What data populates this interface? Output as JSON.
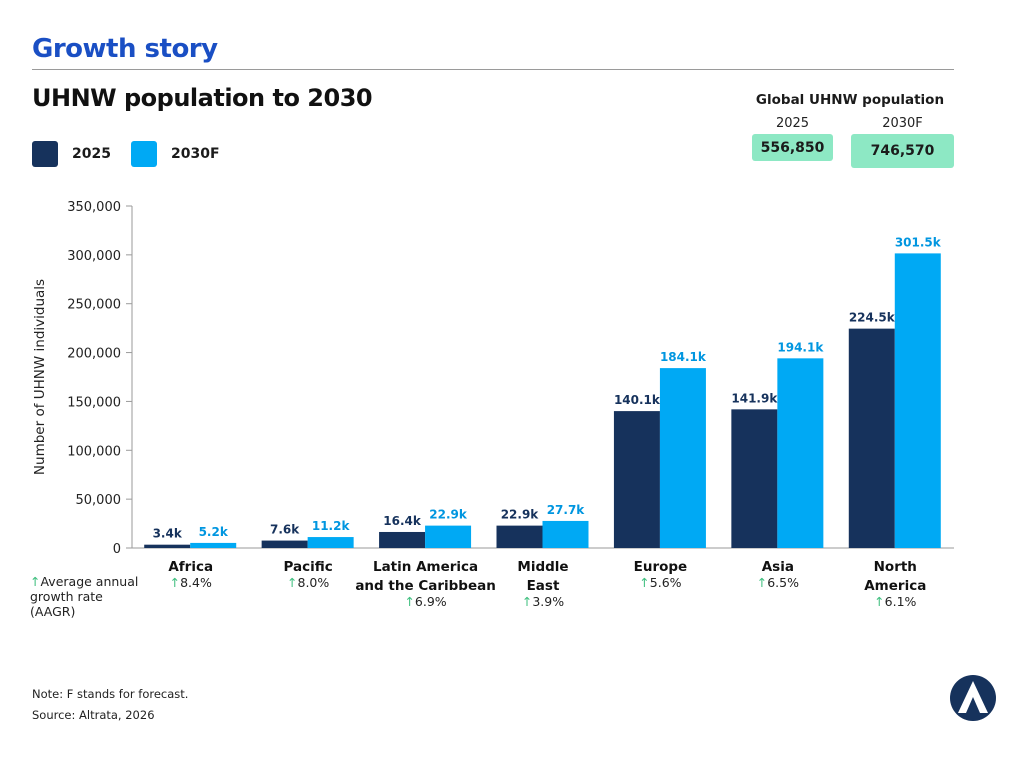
{
  "section_title": "Growth story",
  "chart_title": "UHNW population to 2030",
  "legend": [
    {
      "label": "2025",
      "color": "#16325c"
    },
    {
      "label": "2030F",
      "color": "#00a9f4"
    }
  ],
  "global": {
    "title": "Global UHNW population",
    "year_2025": "2025",
    "value_2025": "556,850",
    "year_2030": "2030F",
    "value_2030": "746,570"
  },
  "aagr_note": {
    "arrow": "↑",
    "line1": "Average annual",
    "line2": "growth rate",
    "line3": "(AAGR)"
  },
  "footer": {
    "note": "Note: F stands for forecast.",
    "source": "Source: Altrata, 2026"
  },
  "chart_data": {
    "type": "bar",
    "ylabel": "Number of UHNW individuals",
    "ylim": [
      0,
      350000
    ],
    "yticks": [
      0,
      50000,
      100000,
      150000,
      200000,
      250000,
      300000,
      350000
    ],
    "ytick_labels": [
      "0",
      "50,000",
      "100,000",
      "150,000",
      "200,000",
      "250,000",
      "300,000",
      "350,000"
    ],
    "categories": [
      {
        "lines": [
          "Africa"
        ],
        "aagr": "8.4%"
      },
      {
        "lines": [
          "Pacific"
        ],
        "aagr": "8.0%"
      },
      {
        "lines": [
          "Latin America",
          "and the Caribbean"
        ],
        "aagr": "6.9%"
      },
      {
        "lines": [
          "Middle",
          "East"
        ],
        "aagr": "3.9%"
      },
      {
        "lines": [
          "Europe"
        ],
        "aagr": "5.6%"
      },
      {
        "lines": [
          "Asia"
        ],
        "aagr": "6.5%"
      },
      {
        "lines": [
          "North",
          "America"
        ],
        "aagr": "6.1%"
      }
    ],
    "series": [
      {
        "name": "2025",
        "color": "#16325c",
        "label_color": "#16325c",
        "values": [
          3400,
          7600,
          16400,
          22900,
          140100,
          141900,
          224500
        ],
        "labels": [
          "3.4k",
          "7.6k",
          "16.4k",
          "22.9k",
          "140.1k",
          "141.9k",
          "224.5k"
        ]
      },
      {
        "name": "2030F",
        "color": "#00a9f4",
        "label_color": "#0096e0",
        "values": [
          5200,
          11200,
          22900,
          27700,
          184100,
          194100,
          301500
        ],
        "labels": [
          "5.2k",
          "11.2k",
          "22.9k",
          "27.7k",
          "184.1k",
          "194.1k",
          "301.5k"
        ]
      }
    ],
    "grid": false,
    "legend_position": "top-left"
  }
}
